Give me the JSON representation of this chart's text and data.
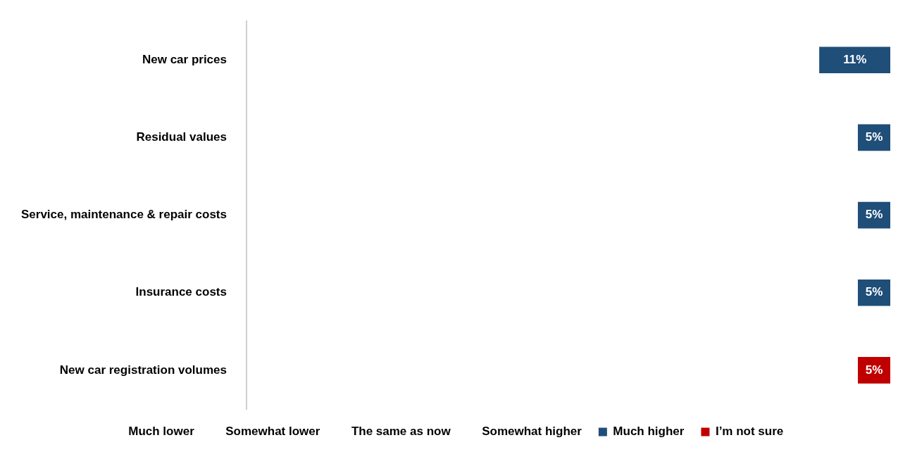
{
  "chart_data": {
    "type": "bar",
    "orientation": "horizontal",
    "categories": [
      "New car prices",
      "Residual values",
      "Service, maintenance & repair costs",
      "Insurance costs",
      "New car registration volumes"
    ],
    "xlim": [
      100,
      0
    ],
    "tick_labels": "y",
    "legend": "bottom",
    "series": [
      {
        "name": "Much lower",
        "values": [
          null,
          null,
          null,
          null,
          null
        ]
      },
      {
        "name": "Somewhat lower",
        "values": [
          null,
          null,
          null,
          null,
          null
        ]
      },
      {
        "name": "The same as now",
        "values": [
          null,
          null,
          null,
          null,
          null
        ]
      },
      {
        "name": "Somewhat higher",
        "values": [
          null,
          null,
          null,
          null,
          null
        ]
      },
      {
        "name": "Much higher",
        "color": "#1f4e79",
        "values": [
          11,
          5,
          5,
          5,
          null
        ],
        "value_labels": [
          "11%",
          "5%",
          "5%",
          "5%",
          null
        ]
      },
      {
        "name": "I’m not sure",
        "color": "#c00000",
        "values": [
          null,
          null,
          null,
          null,
          5
        ],
        "value_labels": [
          null,
          null,
          null,
          null,
          "5%"
        ]
      }
    ]
  }
}
